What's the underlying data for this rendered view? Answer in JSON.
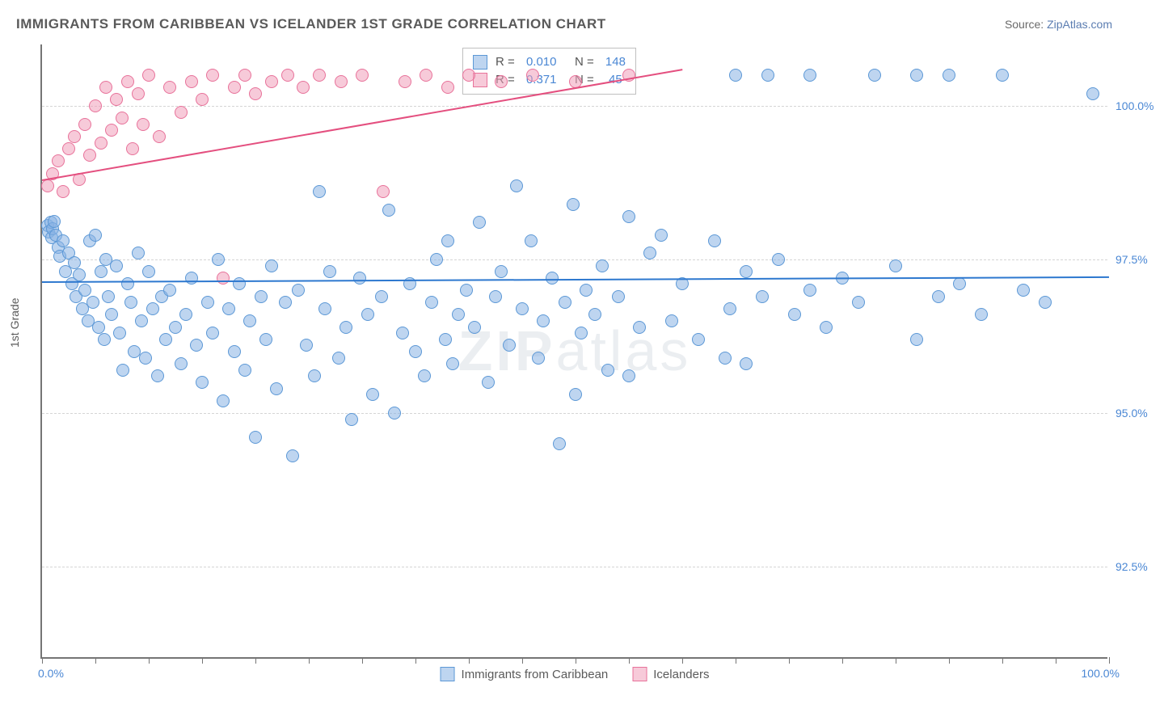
{
  "title": "IMMIGRANTS FROM CARIBBEAN VS ICELANDER 1ST GRADE CORRELATION CHART",
  "source_prefix": "Source: ",
  "source_link": "ZipAtlas.com",
  "ylabel": "1st Grade",
  "watermark": "ZIPatlas",
  "chart": {
    "type": "scatter",
    "xlim": [
      0,
      100
    ],
    "ylim": [
      91.0,
      101.0
    ],
    "xtick_positions": [
      0,
      5,
      10,
      15,
      20,
      25,
      30,
      35,
      40,
      45,
      50,
      55,
      60,
      65,
      70,
      75,
      80,
      85,
      90,
      95,
      100
    ],
    "xaxis_labels": {
      "left": "0.0%",
      "right": "100.0%"
    },
    "yticks": [
      {
        "v": 100.0,
        "label": "100.0%"
      },
      {
        "v": 97.5,
        "label": "97.5%"
      },
      {
        "v": 95.0,
        "label": "95.0%"
      },
      {
        "v": 92.5,
        "label": "92.5%"
      }
    ],
    "background_color": "#ffffff",
    "grid_color": "#d5d5d5",
    "marker_radius": 8,
    "series": [
      {
        "name": "Immigrants from Caribbean",
        "fill": "rgba(137,178,228,0.55)",
        "stroke": "#5c98d6",
        "trend_color": "#2d78cf",
        "trend": {
          "x1": 0,
          "y1": 97.15,
          "x2": 100,
          "y2": 97.23
        },
        "R": "0.010",
        "N": "148",
        "points": [
          [
            0.5,
            98.05
          ],
          [
            0.6,
            97.95
          ],
          [
            0.8,
            98.1
          ],
          [
            0.9,
            97.85
          ],
          [
            1.0,
            98.0
          ],
          [
            1.1,
            98.12
          ],
          [
            1.3,
            97.9
          ],
          [
            1.5,
            97.7
          ],
          [
            1.7,
            97.55
          ],
          [
            2.0,
            97.8
          ],
          [
            2.2,
            97.3
          ],
          [
            2.5,
            97.6
          ],
          [
            2.8,
            97.1
          ],
          [
            3.0,
            97.45
          ],
          [
            3.2,
            96.9
          ],
          [
            3.5,
            97.25
          ],
          [
            3.8,
            96.7
          ],
          [
            4.0,
            97.0
          ],
          [
            4.3,
            96.5
          ],
          [
            4.5,
            97.8
          ],
          [
            4.8,
            96.8
          ],
          [
            5.0,
            97.9
          ],
          [
            5.3,
            96.4
          ],
          [
            5.5,
            97.3
          ],
          [
            5.8,
            96.2
          ],
          [
            6.0,
            97.5
          ],
          [
            6.2,
            96.9
          ],
          [
            6.5,
            96.6
          ],
          [
            7.0,
            97.4
          ],
          [
            7.3,
            96.3
          ],
          [
            7.6,
            95.7
          ],
          [
            8.0,
            97.1
          ],
          [
            8.3,
            96.8
          ],
          [
            8.6,
            96.0
          ],
          [
            9.0,
            97.6
          ],
          [
            9.3,
            96.5
          ],
          [
            9.7,
            95.9
          ],
          [
            10.0,
            97.3
          ],
          [
            10.4,
            96.7
          ],
          [
            10.8,
            95.6
          ],
          [
            11.2,
            96.9
          ],
          [
            11.6,
            96.2
          ],
          [
            12.0,
            97.0
          ],
          [
            12.5,
            96.4
          ],
          [
            13.0,
            95.8
          ],
          [
            13.5,
            96.6
          ],
          [
            14.0,
            97.2
          ],
          [
            14.5,
            96.1
          ],
          [
            15.0,
            95.5
          ],
          [
            15.5,
            96.8
          ],
          [
            16.0,
            96.3
          ],
          [
            16.5,
            97.5
          ],
          [
            17.0,
            95.2
          ],
          [
            17.5,
            96.7
          ],
          [
            18.0,
            96.0
          ],
          [
            18.5,
            97.1
          ],
          [
            19.0,
            95.7
          ],
          [
            19.5,
            96.5
          ],
          [
            20.0,
            94.6
          ],
          [
            20.5,
            96.9
          ],
          [
            21.0,
            96.2
          ],
          [
            21.5,
            97.4
          ],
          [
            22.0,
            95.4
          ],
          [
            22.8,
            96.8
          ],
          [
            23.5,
            94.3
          ],
          [
            24.0,
            97.0
          ],
          [
            24.8,
            96.1
          ],
          [
            25.5,
            95.6
          ],
          [
            26.0,
            98.6
          ],
          [
            26.5,
            96.7
          ],
          [
            27.0,
            97.3
          ],
          [
            27.8,
            95.9
          ],
          [
            28.5,
            96.4
          ],
          [
            29.0,
            94.9
          ],
          [
            29.8,
            97.2
          ],
          [
            30.5,
            96.6
          ],
          [
            31.0,
            95.3
          ],
          [
            31.8,
            96.9
          ],
          [
            32.5,
            98.3
          ],
          [
            33.0,
            95.0
          ],
          [
            33.8,
            96.3
          ],
          [
            34.5,
            97.1
          ],
          [
            35.0,
            96.0
          ],
          [
            35.8,
            95.6
          ],
          [
            36.5,
            96.8
          ],
          [
            37.0,
            97.5
          ],
          [
            37.8,
            96.2
          ],
          [
            38.5,
            95.8
          ],
          [
            39.0,
            96.6
          ],
          [
            39.8,
            97.0
          ],
          [
            40.5,
            96.4
          ],
          [
            41.0,
            98.1
          ],
          [
            41.8,
            95.5
          ],
          [
            42.5,
            96.9
          ],
          [
            43.0,
            97.3
          ],
          [
            43.8,
            96.1
          ],
          [
            44.5,
            98.7
          ],
          [
            45.0,
            96.7
          ],
          [
            45.8,
            97.8
          ],
          [
            46.5,
            95.9
          ],
          [
            47.0,
            96.5
          ],
          [
            47.8,
            97.2
          ],
          [
            48.5,
            94.5
          ],
          [
            49.0,
            96.8
          ],
          [
            49.8,
            98.4
          ],
          [
            50.5,
            96.3
          ],
          [
            51.0,
            97.0
          ],
          [
            51.8,
            96.6
          ],
          [
            52.5,
            97.4
          ],
          [
            53.0,
            95.7
          ],
          [
            54.0,
            96.9
          ],
          [
            55.0,
            98.2
          ],
          [
            56.0,
            96.4
          ],
          [
            57.0,
            97.6
          ],
          [
            58.0,
            97.9
          ],
          [
            59.0,
            96.5
          ],
          [
            60.0,
            97.1
          ],
          [
            61.5,
            96.2
          ],
          [
            63.0,
            97.8
          ],
          [
            64.5,
            96.7
          ],
          [
            65.0,
            100.5
          ],
          [
            66.0,
            97.3
          ],
          [
            67.5,
            96.9
          ],
          [
            68.0,
            100.5
          ],
          [
            69.0,
            97.5
          ],
          [
            70.5,
            96.6
          ],
          [
            72.0,
            97.0
          ],
          [
            72.0,
            100.5
          ],
          [
            73.5,
            96.4
          ],
          [
            75.0,
            97.2
          ],
          [
            76.5,
            96.8
          ],
          [
            78.0,
            100.5
          ],
          [
            80.0,
            97.4
          ],
          [
            82.0,
            96.2
          ],
          [
            82.0,
            100.5
          ],
          [
            84.0,
            96.9
          ],
          [
            85.0,
            100.5
          ],
          [
            86.0,
            97.1
          ],
          [
            88.0,
            96.6
          ],
          [
            90.0,
            100.5
          ],
          [
            92.0,
            97.0
          ],
          [
            94.0,
            96.8
          ],
          [
            64.0,
            95.9
          ],
          [
            66.0,
            95.8
          ],
          [
            55.0,
            95.6
          ],
          [
            50.0,
            95.3
          ],
          [
            98.5,
            100.2
          ],
          [
            38.0,
            97.8
          ]
        ]
      },
      {
        "name": "Icelanders",
        "fill": "rgba(241,159,186,0.55)",
        "stroke": "#e8729a",
        "trend_color": "#e44f7f",
        "trend": {
          "x1": 0,
          "y1": 98.8,
          "x2": 60,
          "y2": 100.6
        },
        "R": "0.371",
        "N": "45",
        "points": [
          [
            0.5,
            98.7
          ],
          [
            1.0,
            98.9
          ],
          [
            1.5,
            99.1
          ],
          [
            2.0,
            98.6
          ],
          [
            2.5,
            99.3
          ],
          [
            3.0,
            99.5
          ],
          [
            3.5,
            98.8
          ],
          [
            4.0,
            99.7
          ],
          [
            4.5,
            99.2
          ],
          [
            5.0,
            100.0
          ],
          [
            5.5,
            99.4
          ],
          [
            6.0,
            100.3
          ],
          [
            6.5,
            99.6
          ],
          [
            7.0,
            100.1
          ],
          [
            7.5,
            99.8
          ],
          [
            8.0,
            100.4
          ],
          [
            8.5,
            99.3
          ],
          [
            9.0,
            100.2
          ],
          [
            9.5,
            99.7
          ],
          [
            10.0,
            100.5
          ],
          [
            11.0,
            99.5
          ],
          [
            12.0,
            100.3
          ],
          [
            13.0,
            99.9
          ],
          [
            14.0,
            100.4
          ],
          [
            15.0,
            100.1
          ],
          [
            16.0,
            100.5
          ],
          [
            17.0,
            97.2
          ],
          [
            18.0,
            100.3
          ],
          [
            19.0,
            100.5
          ],
          [
            20.0,
            100.2
          ],
          [
            21.5,
            100.4
          ],
          [
            23.0,
            100.5
          ],
          [
            24.5,
            100.3
          ],
          [
            26.0,
            100.5
          ],
          [
            28.0,
            100.4
          ],
          [
            30.0,
            100.5
          ],
          [
            32.0,
            98.6
          ],
          [
            34.0,
            100.4
          ],
          [
            36.0,
            100.5
          ],
          [
            38.0,
            100.3
          ],
          [
            40.0,
            100.5
          ],
          [
            43.0,
            100.4
          ],
          [
            46.0,
            100.5
          ],
          [
            50.0,
            100.4
          ],
          [
            55.0,
            100.5
          ]
        ]
      }
    ]
  },
  "legend": {
    "rows": [
      {
        "swatch_fill": "rgba(137,178,228,0.55)",
        "swatch_stroke": "#5c98d6",
        "r_label": "R = ",
        "r_val": "0.010",
        "n_label": "   N = ",
        "n_val": "148"
      },
      {
        "swatch_fill": "rgba(241,159,186,0.55)",
        "swatch_stroke": "#e8729a",
        "r_label": "R = ",
        "r_val": "0.371",
        "n_label": "   N = ",
        "n_val": " 45"
      }
    ]
  },
  "bottom_legend": [
    {
      "fill": "rgba(137,178,228,0.55)",
      "stroke": "#5c98d6",
      "label": "Immigrants from Caribbean"
    },
    {
      "fill": "rgba(241,159,186,0.55)",
      "stroke": "#e8729a",
      "label": "Icelanders"
    }
  ]
}
